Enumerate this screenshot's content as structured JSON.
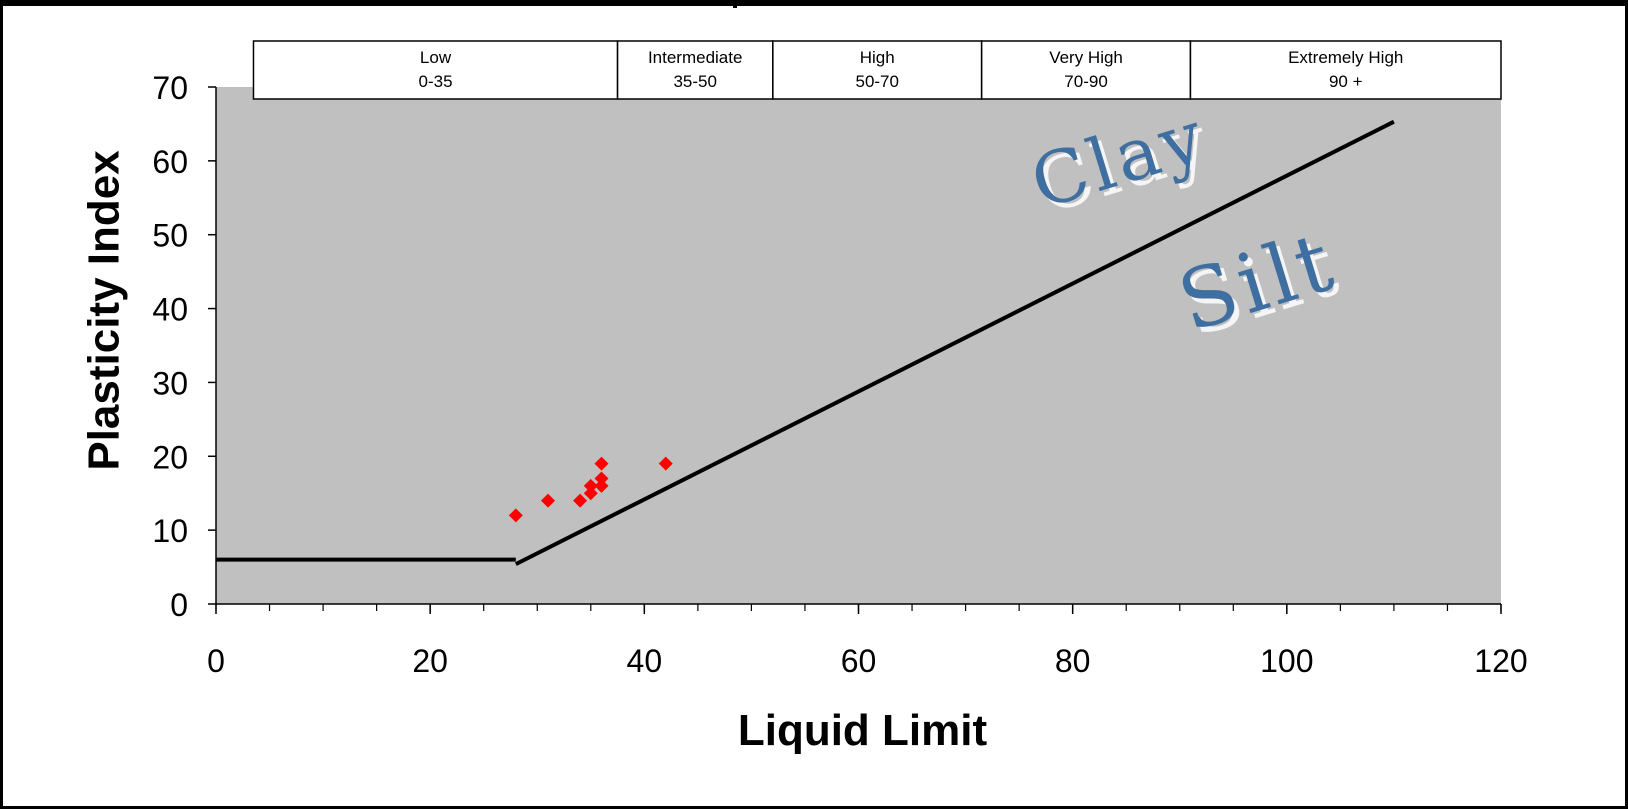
{
  "chart_data": {
    "type": "scatter",
    "xlabel": "Liquid Limit",
    "ylabel": "Plasticity Index",
    "xlim": [
      0,
      120
    ],
    "ylim": [
      0,
      70
    ],
    "x_ticks": [
      0,
      20,
      40,
      60,
      80,
      100,
      120
    ],
    "y_ticks": [
      0,
      10,
      20,
      30,
      40,
      50,
      60,
      70
    ],
    "x_tick_labels": [
      "0",
      "20",
      "40",
      "60",
      "80",
      "100",
      "120"
    ],
    "y_tick_labels": [
      "0",
      "10",
      "20",
      "30",
      "40",
      "50",
      "60",
      "70"
    ],
    "grid": false,
    "plot_background": "#c0c0c0",
    "series": [
      {
        "marker": "diamond",
        "color": "#ff0000",
        "points": [
          {
            "x": 28,
            "y": 12
          },
          {
            "x": 31,
            "y": 14
          },
          {
            "x": 34,
            "y": 14
          },
          {
            "x": 35,
            "y": 15
          },
          {
            "x": 35,
            "y": 16
          },
          {
            "x": 36,
            "y": 16
          },
          {
            "x": 36,
            "y": 17
          },
          {
            "x": 36,
            "y": 19
          },
          {
            "x": 42,
            "y": 19
          }
        ]
      }
    ],
    "reference_lines": [
      {
        "color": "#000000",
        "points": [
          [
            0,
            6
          ],
          [
            28,
            6
          ]
        ]
      },
      {
        "color": "#000000",
        "points": [
          [
            28,
            5.4
          ],
          [
            110,
            65.3
          ]
        ]
      }
    ],
    "plasticity_bands": [
      {
        "name": "Low",
        "range": "0-35",
        "from": 3.5,
        "to": 37.5
      },
      {
        "name": "Intermediate",
        "range": "35-50",
        "from": 37.5,
        "to": 52
      },
      {
        "name": "High",
        "range": "50-70",
        "from": 52,
        "to": 71.5
      },
      {
        "name": "Very High",
        "range": "70-90",
        "from": 71.5,
        "to": 91
      },
      {
        "name": "Extremely High",
        "range": "90 +",
        "from": 91,
        "to": 120
      }
    ],
    "region_labels": [
      {
        "text": "Clay",
        "x": 85,
        "y": 57
      },
      {
        "text": "Silt",
        "x": 98,
        "y": 40
      }
    ]
  }
}
